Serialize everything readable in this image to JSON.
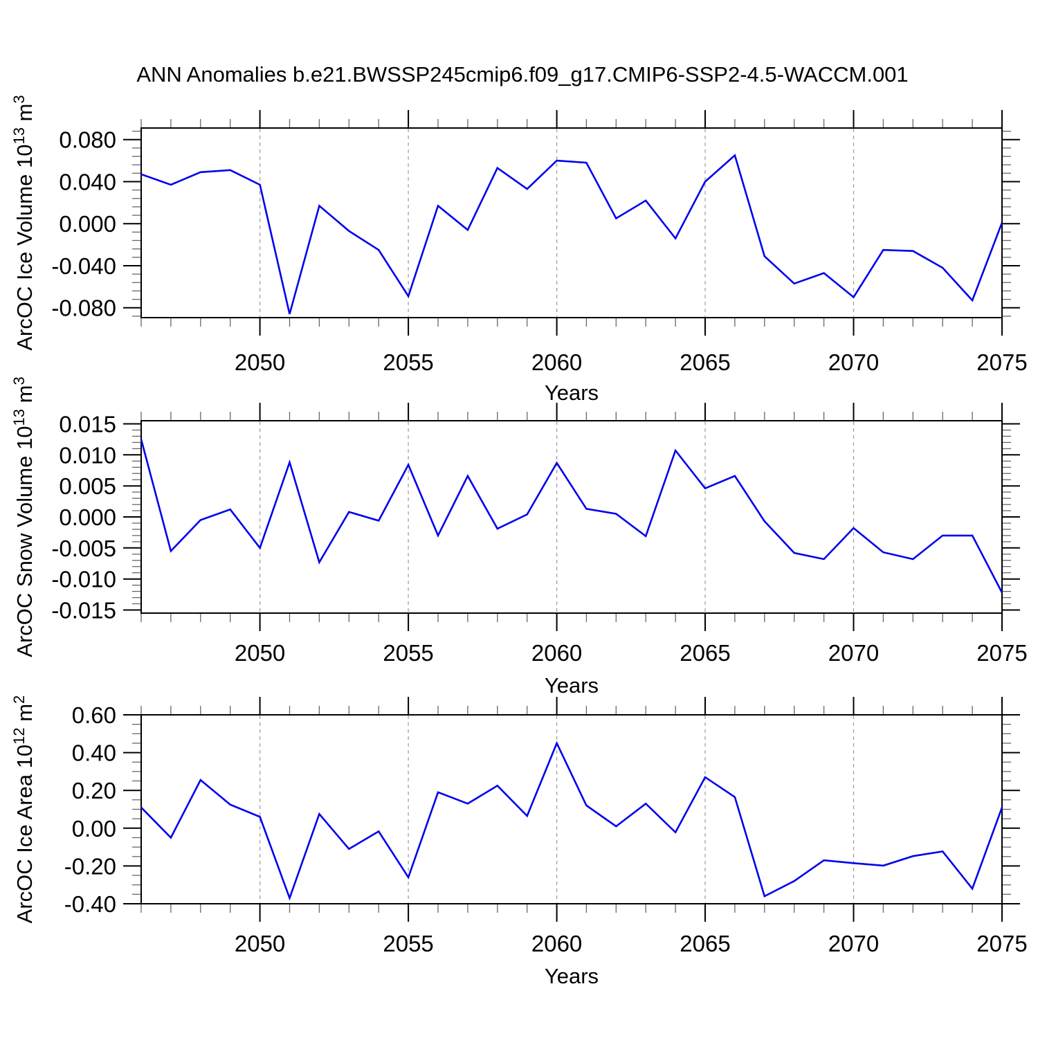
{
  "title": "ANN Anomalies b.e21.BWSSP245cmip6.f09_g17.CMIP6-SSP2-4.5-WACCM.001",
  "style": {
    "line_color": "#0000EE",
    "grid_color": "#999999",
    "axis_color": "#000000",
    "background": "#FFFFFF"
  },
  "x_axis": {
    "label": "Years",
    "range": [
      2046,
      2075
    ],
    "labeled_tick_years": [
      2050,
      2055,
      2060,
      2065,
      2070,
      2075
    ],
    "dashed_gridline_years": [
      2050,
      2055,
      2060,
      2065,
      2070
    ]
  },
  "chart_data": [
    {
      "id": "ice-volume",
      "type": "line",
      "ylabel_text": "ArcOC Ice Volume 10^13 m^3",
      "ylabel": {
        "base": "ArcOC Ice Volume 10",
        "exp": "13",
        "unit": " m",
        "unit_exp": "3"
      },
      "xlabel": "Years",
      "years": [
        2046,
        2047,
        2048,
        2049,
        2050,
        2051,
        2052,
        2053,
        2054,
        2055,
        2056,
        2057,
        2058,
        2059,
        2060,
        2061,
        2062,
        2063,
        2064,
        2065,
        2066,
        2067,
        2068,
        2069,
        2070,
        2071,
        2072,
        2073,
        2074,
        2075
      ],
      "values": [
        0.047,
        0.037,
        0.049,
        0.051,
        0.037,
        -0.086,
        0.017,
        -0.007,
        -0.025,
        -0.069,
        0.017,
        -0.006,
        0.053,
        0.033,
        0.06,
        0.058,
        0.005,
        0.022,
        -0.014,
        0.04,
        0.065,
        -0.031,
        -0.057,
        -0.047,
        -0.07,
        -0.025,
        -0.026,
        -0.042,
        -0.073,
        0.001
      ],
      "ylim": [
        -0.0894,
        0.091
      ],
      "ytick_values": [
        0.08,
        0.04,
        0.0,
        -0.04,
        -0.08
      ],
      "ytick_labels": [
        "0.080",
        "0.040",
        "0.000",
        "-0.040",
        "-0.080"
      ],
      "y_minor_step": 0.008,
      "x_tick_years": [
        2050,
        2055,
        2060,
        2065,
        2070,
        2075
      ],
      "x_grid_years": [
        2050,
        2055,
        2060,
        2065,
        2070
      ]
    },
    {
      "id": "snow-volume",
      "type": "line",
      "ylabel_text": "ArcOC Snow Volume 10^13 m^3",
      "ylabel": {
        "base": "ArcOC Snow Volume 10",
        "exp": "13",
        "unit": " m",
        "unit_exp": "3"
      },
      "xlabel": "Years",
      "years": [
        2046,
        2047,
        2048,
        2049,
        2050,
        2051,
        2052,
        2053,
        2054,
        2055,
        2056,
        2057,
        2058,
        2059,
        2060,
        2061,
        2062,
        2063,
        2064,
        2065,
        2066,
        2067,
        2068,
        2069,
        2070,
        2071,
        2072,
        2073,
        2074,
        2075
      ],
      "values": [
        0.0125,
        -0.0055,
        -0.0005,
        0.0012,
        -0.005,
        0.0088,
        -0.0073,
        0.0008,
        -0.0006,
        0.0084,
        -0.003,
        0.0066,
        -0.0019,
        0.0004,
        0.0087,
        0.0013,
        0.0005,
        -0.0031,
        0.0107,
        0.0046,
        0.0066,
        -0.0007,
        -0.0058,
        -0.0068,
        -0.0018,
        -0.0057,
        -0.0068,
        -0.003,
        -0.003,
        -0.0122
      ],
      "ylim": [
        -0.0155,
        0.0155
      ],
      "ytick_values": [
        0.015,
        0.01,
        0.005,
        0.0,
        -0.005,
        -0.01,
        -0.015
      ],
      "ytick_labels": [
        "0.015",
        "0.010",
        "0.005",
        "0.000",
        "-0.005",
        "-0.010",
        "-0.015"
      ],
      "y_minor_step": 0.001,
      "x_tick_years": [
        2050,
        2055,
        2060,
        2065,
        2070,
        2075
      ],
      "x_grid_years": [
        2050,
        2055,
        2060,
        2065,
        2070
      ]
    },
    {
      "id": "ice-area",
      "type": "line",
      "ylabel_text": "ArcOC Ice Area 10^12 m^2",
      "ylabel": {
        "base": "ArcOC Ice Area 10",
        "exp": "12",
        "unit": " m",
        "unit_exp": "2"
      },
      "xlabel": "Years",
      "years": [
        2046,
        2047,
        2048,
        2049,
        2050,
        2051,
        2052,
        2053,
        2054,
        2055,
        2056,
        2057,
        2058,
        2059,
        2060,
        2061,
        2062,
        2063,
        2064,
        2065,
        2066,
        2067,
        2068,
        2069,
        2070,
        2071,
        2072,
        2073,
        2074,
        2075
      ],
      "values": [
        0.11,
        -0.05,
        0.255,
        0.125,
        0.06,
        -0.37,
        0.075,
        -0.11,
        -0.017,
        -0.26,
        0.19,
        0.13,
        0.225,
        0.065,
        0.45,
        0.12,
        0.01,
        0.13,
        -0.022,
        0.27,
        0.165,
        -0.36,
        -0.28,
        -0.17,
        -0.185,
        -0.198,
        -0.148,
        -0.123,
        -0.32,
        0.11
      ],
      "ylim": [
        -0.4,
        0.6
      ],
      "ytick_values": [
        0.6,
        0.4,
        0.2,
        0.0,
        -0.2,
        -0.4
      ],
      "ytick_labels": [
        "0.60",
        "0.40",
        "0.20",
        "0.00",
        "-0.20",
        "-0.40"
      ],
      "y_minor_step": 0.05,
      "x_tick_years": [
        2050,
        2055,
        2060,
        2065,
        2070,
        2075
      ],
      "x_grid_years": [
        2050,
        2055,
        2060,
        2065,
        2070
      ]
    }
  ]
}
